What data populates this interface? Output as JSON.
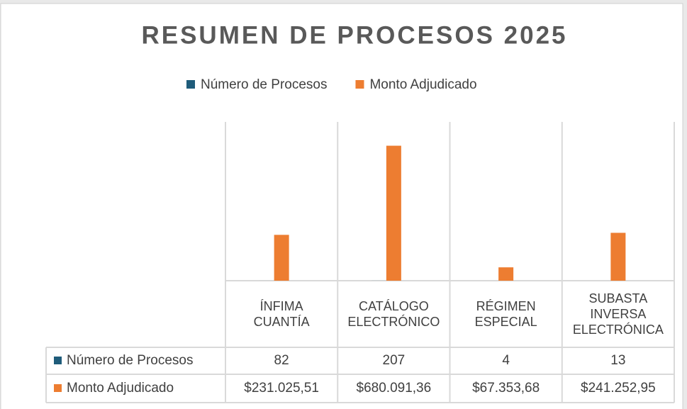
{
  "chart_data": {
    "type": "bar",
    "title": "RESUMEN DE PROCESOS 2025",
    "categories": [
      "ÍNFIMA CUANTÍA",
      "CATÁLOGO ELECTRÓNICO",
      "RÉGIMEN ESPECIAL",
      "SUBASTA INVERSA ELECTRÓNICA"
    ],
    "series": [
      {
        "name": "Número de Procesos",
        "color": "#1f5c7a",
        "values": [
          82,
          207,
          4,
          13
        ]
      },
      {
        "name": "Monto Adjudicado",
        "color": "#ed7d31",
        "values": [
          231025.51,
          680091.36,
          67353.68,
          241252.95
        ],
        "value_labels": [
          "$231.025,51",
          "$680.091,36",
          "$67.353,68",
          "$241.252,95"
        ]
      }
    ],
    "ylim": [
      0,
      800000
    ],
    "legend": "top"
  }
}
